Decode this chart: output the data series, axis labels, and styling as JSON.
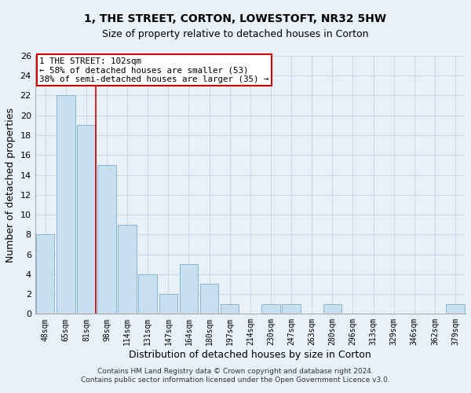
{
  "title": "1, THE STREET, CORTON, LOWESTOFT, NR32 5HW",
  "subtitle": "Size of property relative to detached houses in Corton",
  "xlabel": "Distribution of detached houses by size in Corton",
  "ylabel": "Number of detached properties",
  "bar_labels": [
    "48sqm",
    "65sqm",
    "81sqm",
    "98sqm",
    "114sqm",
    "131sqm",
    "147sqm",
    "164sqm",
    "180sqm",
    "197sqm",
    "214sqm",
    "230sqm",
    "247sqm",
    "263sqm",
    "280sqm",
    "296sqm",
    "313sqm",
    "329sqm",
    "346sqm",
    "362sqm",
    "379sqm"
  ],
  "bar_values": [
    8,
    22,
    19,
    15,
    9,
    4,
    2,
    5,
    3,
    1,
    0,
    1,
    1,
    0,
    1,
    0,
    0,
    0,
    0,
    0,
    1
  ],
  "bar_color": "#c8dff0",
  "bar_edge_color": "#8ab4d4",
  "reference_line_index": 2,
  "reference_line_color": "#cc0000",
  "annotation_text": "1 THE STREET: 102sqm\n← 58% of detached houses are smaller (53)\n38% of semi-detached houses are larger (35) →",
  "annotation_box_facecolor": "#ffffff",
  "annotation_box_edgecolor": "#cc0000",
  "ylim": [
    0,
    26
  ],
  "yticks": [
    0,
    2,
    4,
    6,
    8,
    10,
    12,
    14,
    16,
    18,
    20,
    22,
    24,
    26
  ],
  "footer_line1": "Contains HM Land Registry data © Crown copyright and database right 2024.",
  "footer_line2": "Contains public sector information licensed under the Open Government Licence v3.0.",
  "grid_color": "#ccdaeb",
  "background_color": "#e8f0f8",
  "title_fontsize": 10,
  "subtitle_fontsize": 9
}
